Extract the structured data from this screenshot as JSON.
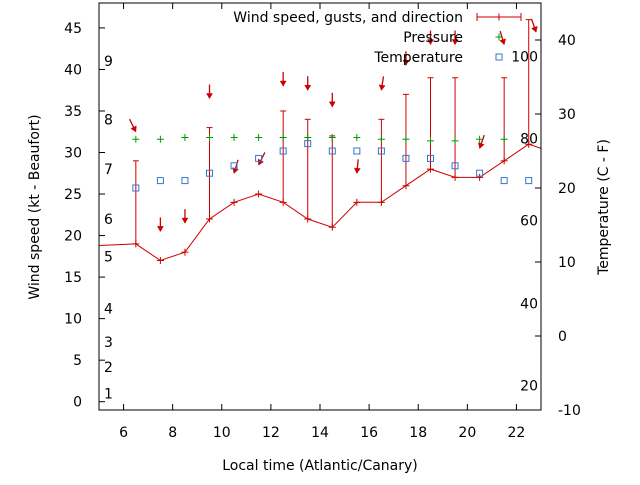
{
  "chart_data": {
    "type": "line",
    "xlabel": "Local time (Atlantic/Canary)",
    "ylabel_left": "Wind speed (kt - Beaufort)",
    "ylabel_right": "Temperature (C - F)",
    "xlim": [
      5,
      23
    ],
    "ylim_left": [
      -1,
      48
    ],
    "ylim_right": [
      -10,
      45
    ],
    "x_ticks": [
      6,
      8,
      10,
      12,
      14,
      16,
      18,
      20,
      22
    ],
    "y_ticks_left": [
      0,
      5,
      10,
      15,
      20,
      25,
      30,
      35,
      40,
      45
    ],
    "y_ticks_right": [
      -10,
      0,
      10,
      20,
      30,
      40
    ],
    "beaufort_labels": [
      {
        "label": "1",
        "kt": 1
      },
      {
        "label": "2",
        "kt": 4.2
      },
      {
        "label": "3",
        "kt": 7.2
      },
      {
        "label": "4",
        "kt": 11.2
      },
      {
        "label": "5",
        "kt": 17.5
      },
      {
        "label": "6",
        "kt": 22
      },
      {
        "label": "7",
        "kt": 28
      },
      {
        "label": "8",
        "kt": 34
      },
      {
        "label": "9",
        "kt": 41
      }
    ],
    "fahrenheit_labels": [
      {
        "label": "20",
        "celsius": -6.7
      },
      {
        "label": "40",
        "celsius": 4.4
      },
      {
        "label": "60",
        "celsius": 15.6
      },
      {
        "label": "80",
        "celsius": 26.7
      },
      {
        "label": "100",
        "celsius": 37.8
      }
    ],
    "legend": {
      "position": "top-right",
      "entries": [
        "Wind speed, gusts, and direction",
        "Pressure",
        "Temperature"
      ]
    },
    "series": [
      {
        "name": "Wind speed, gusts, and direction",
        "color": "#cc0000",
        "x": [
          5,
          6.5,
          7.5,
          8.5,
          9.5,
          10.5,
          11.5,
          12.5,
          13.5,
          14.5,
          15.5,
          16.5,
          17.5,
          18.5,
          19.5,
          20.5,
          21.5,
          22.5,
          23
        ],
        "speed": [
          18.8,
          19,
          17,
          18,
          22,
          24,
          25,
          24,
          22,
          21,
          24,
          24,
          26,
          28,
          27,
          27,
          29,
          31,
          30.5
        ],
        "gust": [
          null,
          29,
          null,
          null,
          33,
          null,
          null,
          35,
          34,
          32,
          null,
          34,
          37,
          39,
          39,
          null,
          39,
          46,
          null
        ],
        "arrow_x": [
          6.5,
          7.5,
          8.5,
          9.5,
          10.5,
          11.5,
          12.5,
          13.5,
          14.5,
          15.5,
          16.5,
          17.5,
          18.5,
          19.5,
          20.5,
          21.5,
          22.8
        ],
        "arrow_kt": [
          32.5,
          20.5,
          21.5,
          36.5,
          27.5,
          28.5,
          38,
          37.5,
          35.5,
          27.5,
          37.5,
          40.5,
          43,
          43,
          30.5,
          43,
          44.5
        ],
        "arrow_dx": [
          0.5,
          0,
          0,
          0,
          -0.3,
          -0.5,
          0,
          0,
          0,
          -0.1,
          -0.15,
          0,
          0,
          0,
          -0.35,
          0.3,
          0.35
        ],
        "arrow_dy": [
          1,
          1,
          1,
          1,
          1,
          1,
          1,
          1,
          1,
          1,
          1,
          1,
          1,
          1,
          1,
          1,
          1
        ]
      },
      {
        "name": "Pressure",
        "color": "#009900",
        "x": [
          6.5,
          7.5,
          8.5,
          9.5,
          10.5,
          11.5,
          12.5,
          13.5,
          14.5,
          15.5,
          16.5,
          17.5,
          18.5,
          19.5,
          20.5,
          21.5
        ],
        "y_kt": [
          31.6,
          31.6,
          31.8,
          31.8,
          31.8,
          31.8,
          31.8,
          31.8,
          31.8,
          31.8,
          31.6,
          31.6,
          31.4,
          31.4,
          31.6,
          31.6
        ]
      },
      {
        "name": "Temperature",
        "color": "#3377cc",
        "x": [
          6.5,
          7.5,
          8.5,
          9.5,
          10.5,
          11.5,
          12.5,
          13.5,
          14.5,
          15.5,
          16.5,
          17.5,
          18.5,
          19.5,
          20.5,
          21.5,
          22.5
        ],
        "celsius": [
          20,
          21,
          21,
          22,
          23,
          24,
          25,
          26,
          25,
          25,
          25,
          24,
          24,
          23,
          22,
          21,
          21
        ]
      }
    ]
  }
}
